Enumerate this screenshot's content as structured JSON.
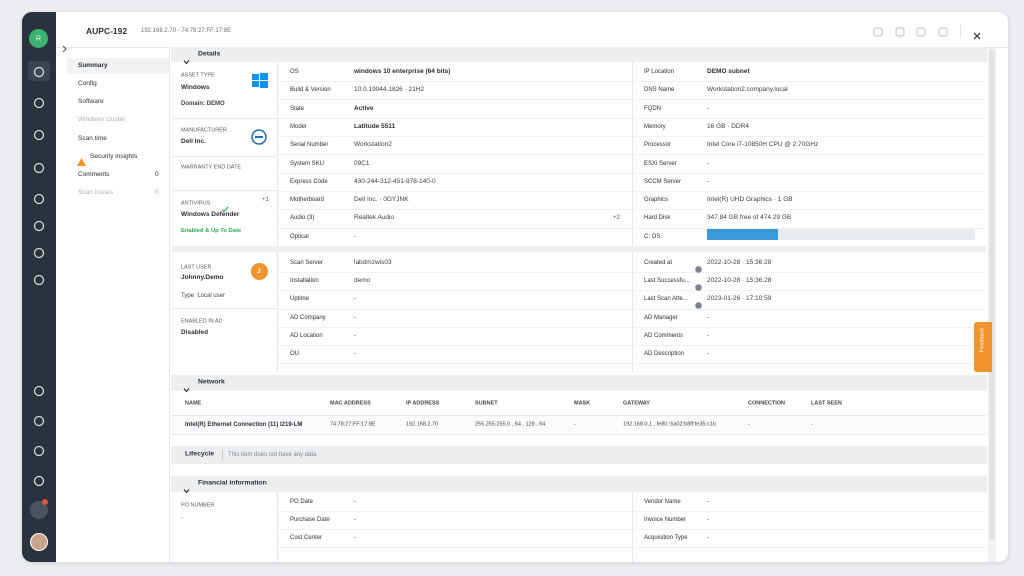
{
  "header": {
    "title": "AUPC-192",
    "subtitle": "192.168.2.70 · 74:78:27:FF:17:8E"
  },
  "sidebar": {
    "avatar": "R"
  },
  "nav": [
    {
      "label": "Summary"
    },
    {
      "label": "Config"
    },
    {
      "label": "Software"
    },
    {
      "label": "Windows cluster"
    },
    {
      "label": "Scan time"
    },
    {
      "label": "Security insights"
    },
    {
      "label": "Comments",
      "count": "0"
    },
    {
      "label": "Scan issues",
      "count": "0"
    }
  ],
  "details": {
    "title": "Details",
    "cards": {
      "asset": {
        "label": "ASSET TYPE",
        "value": "Windows",
        "note": "Domain: DEMO"
      },
      "manufacturer": {
        "label": "MANUFACTURER",
        "value": "Dell Inc."
      },
      "warranty": {
        "label": "WARRANTY END DATE"
      },
      "antivirus": {
        "label": "ANTIVIRUS",
        "badge": "+1",
        "value": "Windows Defender",
        "status": "Enabled & Up To Date"
      },
      "user": {
        "label": "LAST USER",
        "value": "Johnny.Demo",
        "note": "Type: Local user",
        "avatar": "J"
      },
      "ad": {
        "label": "ENABLED IN AD",
        "value": "Disabled"
      }
    },
    "middle": [
      {
        "label": "OS",
        "value": "windows 10 enterprise (64 bits)"
      },
      {
        "label": "Build & Version",
        "value": "10.0.19044.1826 · 21H2"
      },
      {
        "label": "State",
        "value": "Active"
      },
      {
        "label": "Model",
        "value": "Latitude 5511"
      },
      {
        "label": "Serial Number",
        "value": "Workstation2"
      },
      {
        "label": "System SKU",
        "value": "09C1"
      },
      {
        "label": "Express Code",
        "value": "430-244-312-451-978-140-0"
      },
      {
        "label": "Motherboard",
        "value": "Dell Inc. · 0GYJNK"
      },
      {
        "label": "Audio (3)",
        "value": "Realtek Audio",
        "extra": "+2"
      },
      {
        "label": "Optical",
        "value": "-"
      }
    ],
    "right": [
      {
        "label": "IP Location",
        "value": "DEMO subnet"
      },
      {
        "label": "DNS Name",
        "value": "Workstation2.company.local"
      },
      {
        "label": "FQDN",
        "value": "-"
      },
      {
        "label": "Memory",
        "value": "16 GB · DDR4"
      },
      {
        "label": "Processor",
        "value": "Intel Core i7-10850H CPU @ 2.70GHz"
      },
      {
        "label": "ESXi Server",
        "value": "-"
      },
      {
        "label": "SCCM Server",
        "value": "-"
      },
      {
        "label": "Graphics",
        "value": "Intel(R) UHD Graphics · 1 GB"
      },
      {
        "label": "Hard Disk",
        "value": "347.84 GB free of 474.29 GB"
      },
      {
        "label": "C: OS"
      }
    ],
    "disk": {
      "free": 347.84,
      "total": 474.29
    },
    "middle2": [
      {
        "label": "Scan Server",
        "value": "labdmzwis03"
      },
      {
        "label": "Installation",
        "value": "demo"
      },
      {
        "label": "Uptime",
        "value": "-"
      },
      {
        "label": "AD Company",
        "value": "-"
      },
      {
        "label": "AD Location",
        "value": "-"
      },
      {
        "label": "OU",
        "value": "-"
      }
    ],
    "right2": [
      {
        "label": "Created at",
        "value": "2022-10-28 · 15:36:28"
      },
      {
        "label": "Last Successfu...",
        "value": "2022-10-28 · 15:36:28"
      },
      {
        "label": "Last Scan Atte...",
        "value": "2023-01-26 · 17:10:59"
      },
      {
        "label": "AD Manager",
        "value": "-"
      },
      {
        "label": "AD Comments",
        "value": "-"
      },
      {
        "label": "AD Description",
        "value": "-"
      }
    ]
  },
  "network": {
    "title": "Network",
    "headers": [
      "NAME",
      "MAC ADDRESS",
      "IP ADDRESS",
      "SUBNET",
      "MASK",
      "GATEWAY",
      "CONNECTION",
      "LAST SEEN"
    ],
    "rows": [
      [
        "Intel(R) Ethernet Connection (11) I219-LM",
        "74:78:27:FF:17:8E",
        "192.168.2.70",
        "255.255.255.0 , 64 , 128 , 64",
        "-",
        "192.168.0.1 , fe80::6a02:b8ff:fe35:c1b",
        "-",
        "-"
      ]
    ]
  },
  "lifecycle": {
    "title": "Lifecycle",
    "text": "This item does not have any data"
  },
  "financial": {
    "title": "Financial information",
    "po": {
      "label": "PO NUMBER",
      "value": "-"
    },
    "middle": [
      {
        "label": "PO Date",
        "value": "-"
      },
      {
        "label": "Purchase Date",
        "value": "-"
      },
      {
        "label": "Cost Center",
        "value": "-"
      }
    ],
    "right": [
      {
        "label": "Vendor Name",
        "value": "-"
      },
      {
        "label": "Invoice Number",
        "value": "-"
      },
      {
        "label": "Acquisition Type",
        "value": "-"
      }
    ]
  },
  "feedback": "Feedback"
}
